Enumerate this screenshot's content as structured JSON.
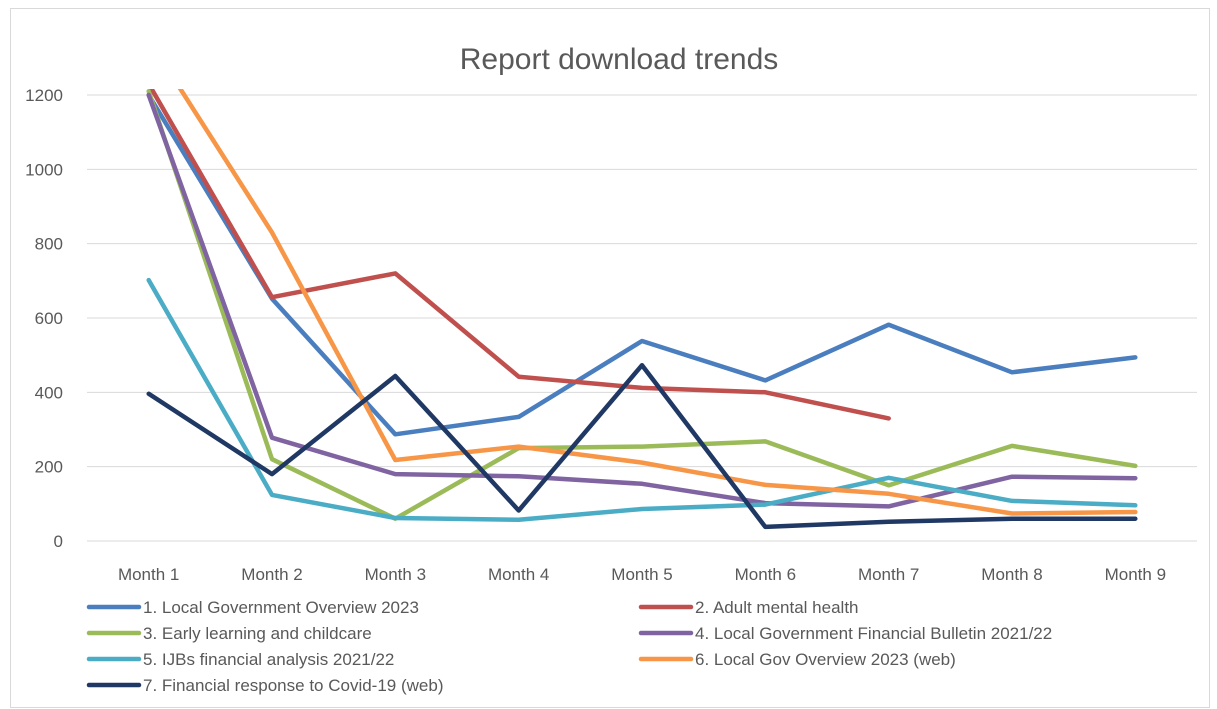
{
  "chart_data": {
    "type": "line",
    "title": "Report download trends",
    "xlabel": "",
    "ylabel": "",
    "categories": [
      "Month 1",
      "Month 2",
      "Month 3",
      "Month 4",
      "Month 5",
      "Month 6",
      "Month 7",
      "Month 8",
      "Month 9"
    ],
    "ylim": [
      0,
      1200
    ],
    "yticks": [
      0,
      200,
      400,
      600,
      800,
      1000,
      1200
    ],
    "grid": "horizontal",
    "legend": "bottom",
    "series": [
      {
        "name": "1. Local Government Overview 2023",
        "color": "#4a7ebf",
        "values": [
          1200,
          652,
          287,
          334,
          538,
          432,
          582,
          454,
          494
        ]
      },
      {
        "name": "2. Adult mental health",
        "color": "#c0504d",
        "values": [
          1230,
          656,
          720,
          442,
          412,
          400,
          330,
          null,
          null
        ]
      },
      {
        "name": "3. Early learning and childcare",
        "color": "#9bbb59",
        "values": [
          1210,
          220,
          60,
          250,
          254,
          268,
          150,
          256,
          202
        ]
      },
      {
        "name": "4. Local Government Financial Bulletin 2021/22",
        "color": "#8064a2",
        "values": [
          1200,
          278,
          180,
          174,
          154,
          102,
          93,
          173,
          169
        ]
      },
      {
        "name": "5. IJBs financial analysis 2021/22",
        "color": "#4bacc6",
        "values": [
          702,
          124,
          62,
          57,
          86,
          98,
          170,
          108,
          96
        ]
      },
      {
        "name": "6. Local Gov Overview 2023 (web)",
        "color": "#f79646",
        "values": [
          1350,
          830,
          218,
          254,
          211,
          151,
          127,
          74,
          78
        ]
      },
      {
        "name": "7. Financial response to Covid-19 (web)",
        "color": "#1f3864",
        "values": [
          396,
          180,
          444,
          82,
          473,
          38,
          52,
          60,
          60
        ]
      }
    ]
  }
}
